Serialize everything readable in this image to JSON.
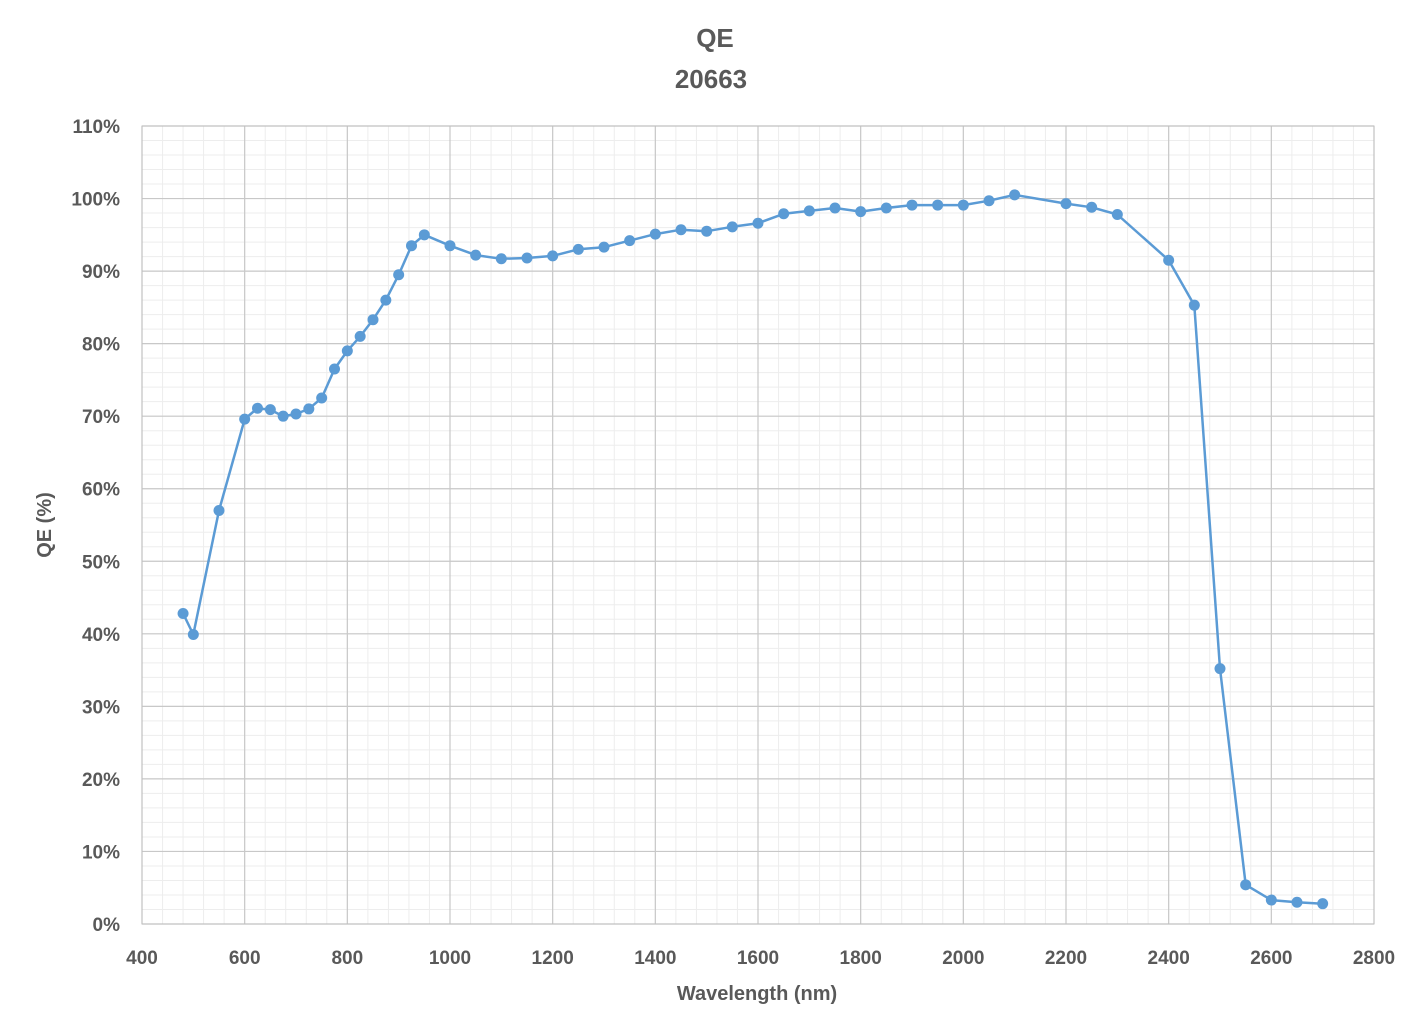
{
  "chart_data": {
    "type": "line",
    "title": "QE",
    "subtitle": "20663",
    "xlabel": "Wavelength (nm)",
    "ylabel": "QE (%)",
    "xlim": [
      400,
      2800
    ],
    "ylim": [
      0,
      110
    ],
    "x_major_step": 200,
    "x_minor_step": 40,
    "y_major_step": 10,
    "y_minor_step": 2,
    "x_ticks": [
      "400",
      "600",
      "800",
      "1000",
      "1200",
      "1400",
      "1600",
      "1800",
      "2000",
      "2200",
      "2400",
      "2600",
      "2800"
    ],
    "y_ticks": [
      "0%",
      "10%",
      "20%",
      "30%",
      "40%",
      "50%",
      "60%",
      "70%",
      "80%",
      "90%",
      "100%",
      "110%"
    ],
    "grid": true,
    "legend": "none",
    "series_color": "#5B9BD5",
    "series": [
      {
        "x": [
          480,
          500,
          550,
          600,
          625,
          650,
          675,
          700,
          725,
          750,
          775,
          800,
          825,
          850,
          875,
          900,
          925,
          950,
          1000,
          1050,
          1100,
          1150,
          1200,
          1250,
          1300,
          1350,
          1400,
          1450,
          1500,
          1550,
          1600,
          1650,
          1700,
          1750,
          1800,
          1850,
          1900,
          1950,
          2000,
          2050,
          2100,
          2200,
          2250,
          2300,
          2400,
          2450,
          2500,
          2550,
          2600,
          2650,
          2700
        ],
        "y": [
          42.8,
          39.9,
          57.0,
          69.6,
          71.1,
          70.9,
          70.0,
          70.3,
          71.0,
          72.5,
          76.5,
          79.0,
          81.0,
          83.3,
          86.0,
          89.5,
          93.5,
          95.0,
          93.5,
          92.2,
          91.7,
          91.8,
          92.1,
          93.0,
          93.3,
          94.2,
          95.1,
          95.7,
          95.5,
          96.1,
          96.6,
          97.9,
          98.3,
          98.7,
          98.2,
          98.7,
          99.1,
          99.1,
          99.1,
          99.7,
          100.5,
          99.3,
          98.8,
          97.8,
          91.5,
          85.3,
          35.2,
          5.4,
          3.3,
          3.0,
          2.8
        ]
      }
    ]
  }
}
